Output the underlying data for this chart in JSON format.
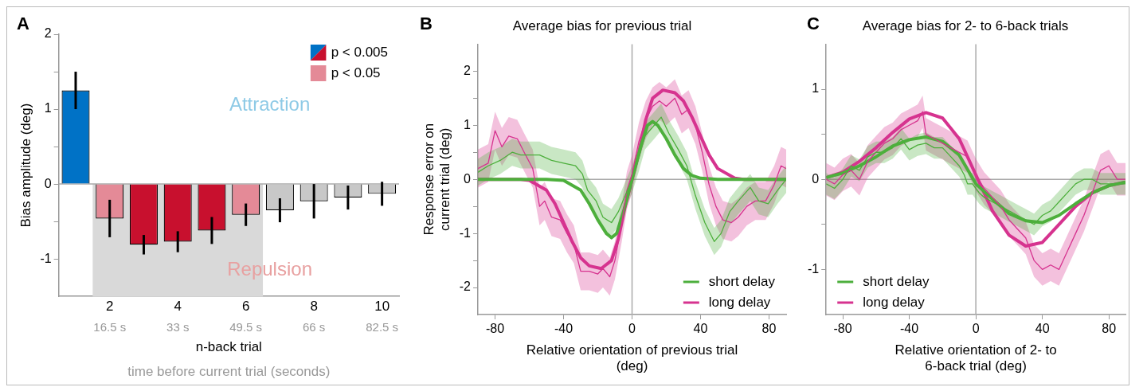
{
  "chart_data": [
    {
      "type": "bar",
      "ylabel": "Bias amplitude (deg)",
      "xlabel": "n-back trial",
      "categories": [
        null,
        "2",
        null,
        "4",
        null,
        "6",
        null,
        "8",
        null,
        "10"
      ],
      "series": [
        {
          "name": "p < 0.005",
          "colors": [
            "#0072c6",
            "#c8102e",
            "#c8102e",
            "#c8102e",
            "#c8102e",
            "#c8102e",
            "#c8102e",
            "#c8102e",
            "#c8102e",
            "#c8102e"
          ],
          "values": [
            1.25,
            null,
            -0.81,
            -0.77,
            -0.62,
            null,
            null,
            null,
            null,
            null
          ],
          "errors": [
            0.25,
            null,
            0.13,
            0.14,
            0.18,
            null,
            null,
            null,
            null,
            null
          ]
        },
        {
          "name": "p < 0.05",
          "color": "#e48a97",
          "values": [
            null,
            -0.46,
            null,
            null,
            null,
            -0.41,
            null,
            null,
            null,
            null
          ],
          "errors": [
            null,
            0.25,
            null,
            null,
            null,
            0.15,
            null,
            null,
            null,
            null
          ]
        },
        {
          "color": "#c8c8c8",
          "values": [
            null,
            null,
            null,
            null,
            null,
            null,
            -0.35,
            -0.23,
            -0.18,
            -0.13
          ],
          "errors": [
            null,
            null,
            null,
            null,
            null,
            null,
            0.16,
            0.23,
            0.16,
            0.16
          ]
        }
      ],
      "ylim": [
        -1.5,
        2
      ],
      "yticks": [
        -1,
        {
          "value": -0.5,
          "label": null
        },
        0,
        {
          "value": 0.5,
          "label": null
        },
        1,
        {
          "value": 1.5,
          "label": null
        },
        2
      ],
      "bands": [
        {
          "axis": "x",
          "from": "2",
          "to": "6",
          "color": "#d9d9d9"
        }
      ],
      "ref_lines": [
        {
          "axis": "y",
          "value": 0,
          "color": "#aaaaaa"
        }
      ],
      "legend": "top right",
      "annotations": [
        "A",
        "Attraction",
        "Repulsion",
        "time before current trial (seconds)",
        "16.5 s",
        "33 s",
        "49.5 s",
        "66 s",
        "82.5 s"
      ]
    },
    {
      "type": "line",
      "title": "Average bias for previous trial",
      "xlabel": "Relative orientation of previous trial (deg)",
      "ylabel": "Response error on current trial (deg)",
      "series": [
        {
          "color": "#4daf3c",
          "x": [
            -90,
            -84,
            -77,
            -70,
            -65,
            -59,
            -54,
            -47,
            -40,
            -33,
            -29,
            -26,
            -21,
            -17,
            -12,
            -8,
            -4,
            0,
            4,
            7.5,
            13,
            17,
            21.5,
            27,
            32,
            37,
            42.5,
            48,
            52,
            57,
            62,
            69,
            74,
            79.5,
            85,
            90
          ],
          "values": [
            0.13,
            0.25,
            0.35,
            0.5,
            0.45,
            0.45,
            0.45,
            0.35,
            0.3,
            0.25,
            0.1,
            -0.2,
            -0.4,
            -0.7,
            -0.8,
            -0.6,
            -0.3,
            0,
            0.4,
            0.8,
            1.0,
            1.15,
            0.85,
            0.55,
            0.25,
            -0.3,
            -0.8,
            -1.15,
            -1.0,
            -0.6,
            -0.4,
            -0.15,
            -0.4,
            -0.45,
            -0.2,
            0
          ],
          "lower": [
            -0.12,
            0,
            0.1,
            0.25,
            0.2,
            0.2,
            0.2,
            0.1,
            0.05,
            0,
            -0.15,
            -0.45,
            -0.65,
            -0.95,
            -1.05,
            -0.85,
            -0.55,
            -0.25,
            0.15,
            0.55,
            0.75,
            0.9,
            0.6,
            0.3,
            0,
            -0.55,
            -1.05,
            -1.4,
            -1.25,
            -0.85,
            -0.65,
            -0.4,
            -0.65,
            -0.7,
            -0.45,
            -0.25
          ],
          "upper": [
            0.38,
            0.5,
            0.6,
            0.75,
            0.7,
            0.7,
            0.7,
            0.6,
            0.55,
            0.5,
            0.35,
            0.05,
            -0.15,
            -0.45,
            -0.55,
            -0.35,
            -0.05,
            0.25,
            0.65,
            1.05,
            1.25,
            1.4,
            1.1,
            0.8,
            0.5,
            -0.05,
            -0.55,
            -0.9,
            -0.75,
            -0.35,
            -0.15,
            0.1,
            -0.15,
            -0.2,
            0.05,
            0.25
          ]
        },
        {
          "color": "#d6338f",
          "x": [
            -90,
            -84,
            -80,
            -76,
            -72,
            -67,
            -63,
            -58,
            -54,
            -51,
            -47,
            -42,
            -38,
            -34,
            -30,
            -25,
            -20,
            -17,
            -13,
            -10,
            -6,
            -3,
            0,
            4,
            8,
            12,
            16,
            20,
            25,
            29,
            33,
            37,
            41,
            45,
            49,
            53,
            58,
            62,
            67,
            72,
            78,
            83,
            87,
            90
          ],
          "values": [
            0.2,
            0.3,
            0.9,
            0.6,
            0.8,
            0.75,
            0.5,
            0.2,
            -0.5,
            -0.4,
            -0.7,
            -0.75,
            -1.0,
            -1.2,
            -1.7,
            -1.7,
            -1.75,
            -1.65,
            -1.8,
            -1.5,
            -0.8,
            -0.2,
            0.1,
            0.7,
            1.1,
            1.35,
            1.45,
            1.35,
            1.5,
            1.2,
            1.3,
            1.0,
            0.5,
            -0.1,
            -0.5,
            -0.75,
            -0.8,
            -0.7,
            -0.5,
            -0.4,
            -0.4,
            -0.1,
            0.25,
            0.2
          ],
          "lower": [
            -0.15,
            -0.05,
            0.55,
            0.25,
            0.45,
            0.4,
            0.15,
            -0.15,
            -0.85,
            -0.75,
            -1.05,
            -1.1,
            -1.35,
            -1.55,
            -2.05,
            -2.05,
            -2.1,
            -2.0,
            -2.15,
            -1.85,
            -1.15,
            -0.55,
            -0.25,
            0.35,
            0.75,
            1.0,
            1.1,
            1.0,
            1.15,
            0.85,
            0.95,
            0.65,
            0.15,
            -0.45,
            -0.85,
            -1.1,
            -1.15,
            -1.05,
            -0.85,
            -0.75,
            -0.75,
            -0.45,
            -0.1,
            -0.15
          ],
          "upper": [
            0.55,
            0.65,
            1.25,
            0.95,
            1.15,
            1.1,
            0.85,
            0.55,
            -0.15,
            -0.05,
            -0.35,
            -0.4,
            -0.65,
            -0.85,
            -1.35,
            -1.35,
            -1.4,
            -1.3,
            -1.45,
            -1.15,
            -0.45,
            0.15,
            0.45,
            1.05,
            1.45,
            1.7,
            1.8,
            1.7,
            1.85,
            1.55,
            1.65,
            1.35,
            0.85,
            0.25,
            -0.15,
            -0.4,
            -0.45,
            -0.35,
            -0.15,
            -0.05,
            -0.05,
            0.25,
            0.6,
            0.55
          ]
        },
        {
          "name": "short delay",
          "color": "#4daf3c",
          "x": [
            -90,
            -50,
            -40,
            -30,
            -25,
            -20,
            -15,
            -12,
            -9,
            -5,
            0,
            5,
            9,
            12,
            15,
            20,
            25,
            30,
            35,
            40,
            50,
            90
          ],
          "values": [
            0,
            0,
            -0.02,
            -0.2,
            -0.45,
            -0.75,
            -1.0,
            -1.08,
            -1.0,
            -0.6,
            0,
            0.6,
            1.0,
            1.07,
            1.0,
            0.75,
            0.45,
            0.2,
            0.07,
            0.02,
            0,
            0
          ]
        },
        {
          "name": "long delay",
          "color": "#d6338f",
          "x": [
            -90,
            -65,
            -60,
            -50,
            -45,
            -40,
            -35,
            -30,
            -25,
            -18,
            -12,
            -8,
            -4,
            0,
            4,
            8,
            12,
            18,
            25,
            30,
            35,
            40,
            45,
            50,
            60,
            65,
            90
          ],
          "values": [
            0,
            0,
            -0.02,
            -0.2,
            -0.45,
            -0.8,
            -1.15,
            -1.45,
            -1.6,
            -1.65,
            -1.5,
            -1.1,
            -0.5,
            0,
            0.5,
            1.1,
            1.5,
            1.65,
            1.6,
            1.45,
            1.15,
            0.8,
            0.45,
            0.2,
            0.02,
            0,
            0
          ]
        }
      ],
      "xlim": [
        -90,
        90
      ],
      "xticks": [
        -80,
        -40,
        0,
        40,
        80
      ],
      "ylim": [
        -2.5,
        2.5
      ],
      "yticks": [
        -2,
        {
          "value": -1.5,
          "label": null
        },
        -1,
        {
          "value": -0.5,
          "label": null
        },
        0,
        {
          "value": 0.5,
          "label": null
        },
        1,
        {
          "value": 1.5,
          "label": null
        },
        2
      ],
      "ref_lines": [
        {
          "axis": "x",
          "value": 0,
          "color": "#aaaaaa"
        },
        {
          "axis": "y",
          "value": 0,
          "color": "#aaaaaa"
        }
      ],
      "legend": "bottom right",
      "annotations": [
        "B"
      ]
    },
    {
      "type": "line",
      "title": "Average bias for 2- to 6-back trials",
      "xlabel": "Relative orientation of 2- to 6-back trial (deg)",
      "series": [
        {
          "color": "#4daf3c",
          "x": [
            -90,
            -85,
            -80,
            -75,
            -70,
            -65,
            -60,
            -55,
            -50,
            -45,
            -40,
            -35,
            -30,
            -25,
            -20,
            -15,
            -10,
            -7,
            -5,
            -2,
            2,
            5,
            10,
            15,
            20,
            25,
            30,
            35,
            40,
            45,
            50,
            55,
            60,
            65,
            70,
            75,
            80,
            85,
            90
          ],
          "values": [
            -0.05,
            -0.1,
            0,
            0.15,
            0.1,
            0.25,
            0.3,
            0.3,
            0.35,
            0.45,
            0.33,
            0.38,
            0.4,
            0.35,
            0.35,
            0.25,
            0.15,
            0.05,
            -0.05,
            -0.05,
            -0.15,
            -0.2,
            -0.25,
            -0.3,
            -0.35,
            -0.4,
            -0.45,
            -0.5,
            -0.4,
            -0.35,
            -0.25,
            -0.15,
            -0.05,
            0,
            0,
            -0.05,
            -0.05,
            -0.05,
            -0.05
          ],
          "lower": [
            -0.17,
            -0.22,
            -0.12,
            0.03,
            -0.02,
            0.13,
            0.18,
            0.18,
            0.23,
            0.33,
            0.21,
            0.26,
            0.28,
            0.23,
            0.23,
            0.13,
            0.03,
            -0.07,
            -0.17,
            -0.17,
            -0.27,
            -0.32,
            -0.37,
            -0.42,
            -0.47,
            -0.52,
            -0.57,
            -0.62,
            -0.52,
            -0.47,
            -0.37,
            -0.27,
            -0.17,
            -0.12,
            -0.12,
            -0.17,
            -0.17,
            -0.17,
            -0.17
          ],
          "upper": [
            0.07,
            0.02,
            0.12,
            0.27,
            0.22,
            0.37,
            0.42,
            0.42,
            0.47,
            0.57,
            0.45,
            0.5,
            0.52,
            0.47,
            0.47,
            0.37,
            0.27,
            0.17,
            0.07,
            0.07,
            -0.03,
            -0.08,
            -0.13,
            -0.18,
            -0.23,
            -0.28,
            -0.33,
            -0.38,
            -0.28,
            -0.23,
            -0.13,
            -0.03,
            0.07,
            0.12,
            0.12,
            0.07,
            0.07,
            0.07,
            0.07
          ]
        },
        {
          "color": "#d6338f",
          "x": [
            -90,
            -85,
            -80,
            -75,
            -70,
            -65,
            -60,
            -55,
            -50,
            -45,
            -40,
            -35,
            -32,
            -30,
            -25,
            -20,
            -15,
            -10,
            -5,
            0,
            5,
            10,
            15,
            20,
            25,
            30,
            35,
            40,
            45,
            50,
            55,
            60,
            65,
            70,
            75,
            80,
            85,
            90
          ],
          "values": [
            0,
            -0.05,
            0.05,
            0.1,
            0,
            0.2,
            0.3,
            0.4,
            0.45,
            0.55,
            0.6,
            0.65,
            0.75,
            0.5,
            0.45,
            0.4,
            0.35,
            0.3,
            0.25,
            0.05,
            -0.1,
            -0.2,
            -0.3,
            -0.45,
            -0.55,
            -0.65,
            -0.9,
            -1.0,
            -0.95,
            -1.0,
            -0.8,
            -0.6,
            -0.4,
            -0.15,
            0.1,
            0.15,
            0,
            0
          ],
          "lower": [
            -0.18,
            -0.23,
            -0.13,
            -0.08,
            -0.18,
            0.02,
            0.12,
            0.22,
            0.27,
            0.37,
            0.42,
            0.47,
            0.57,
            0.32,
            0.27,
            0.22,
            0.17,
            0.12,
            0.07,
            -0.13,
            -0.28,
            -0.38,
            -0.48,
            -0.63,
            -0.73,
            -0.83,
            -1.08,
            -1.18,
            -1.13,
            -1.18,
            -0.98,
            -0.78,
            -0.58,
            -0.33,
            -0.08,
            -0.03,
            -0.18,
            -0.18
          ],
          "upper": [
            0.18,
            0.13,
            0.23,
            0.28,
            0.18,
            0.38,
            0.48,
            0.58,
            0.63,
            0.73,
            0.78,
            0.83,
            0.93,
            0.68,
            0.63,
            0.58,
            0.53,
            0.48,
            0.43,
            0.23,
            0.08,
            -0.02,
            -0.12,
            -0.27,
            -0.37,
            -0.47,
            -0.72,
            -0.82,
            -0.77,
            -0.82,
            -0.62,
            -0.42,
            -0.22,
            0.03,
            0.28,
            0.33,
            0.18,
            0.18
          ]
        },
        {
          "name": "short delay",
          "color": "#4daf3c",
          "x": [
            -90,
            -80,
            -70,
            -60,
            -50,
            -40,
            -30,
            -20,
            -10,
            0,
            10,
            20,
            30,
            40,
            50,
            60,
            70,
            80,
            90
          ],
          "values": [
            0.02,
            0.07,
            0.15,
            0.25,
            0.37,
            0.44,
            0.47,
            0.42,
            0.27,
            -0.05,
            -0.22,
            -0.38,
            -0.46,
            -0.48,
            -0.4,
            -0.27,
            -0.15,
            -0.07,
            -0.03
          ]
        },
        {
          "name": "long delay",
          "color": "#d6338f",
          "x": [
            -90,
            -80,
            -70,
            -60,
            -50,
            -40,
            -30,
            -20,
            -10,
            0,
            10,
            20,
            30,
            40,
            50,
            60,
            70,
            80,
            90
          ],
          "values": [
            0.02,
            0.08,
            0.2,
            0.35,
            0.52,
            0.67,
            0.74,
            0.68,
            0.45,
            0.05,
            -0.35,
            -0.62,
            -0.74,
            -0.7,
            -0.5,
            -0.3,
            -0.15,
            -0.07,
            -0.03
          ]
        }
      ],
      "xlim": [
        -90,
        90
      ],
      "xticks": [
        -80,
        -40,
        0,
        40,
        80
      ],
      "ylim": [
        -1.5,
        1.5
      ],
      "yticks": [
        -1,
        {
          "value": -0.5,
          "label": null
        },
        0,
        {
          "value": 0.5,
          "label": null
        },
        1
      ],
      "ref_lines": [
        {
          "axis": "x",
          "value": 0,
          "color": "#aaaaaa"
        },
        {
          "axis": "y",
          "value": 0,
          "color": "#aaaaaa"
        }
      ],
      "legend": "bottom left",
      "annotations": [
        "C"
      ]
    }
  ]
}
